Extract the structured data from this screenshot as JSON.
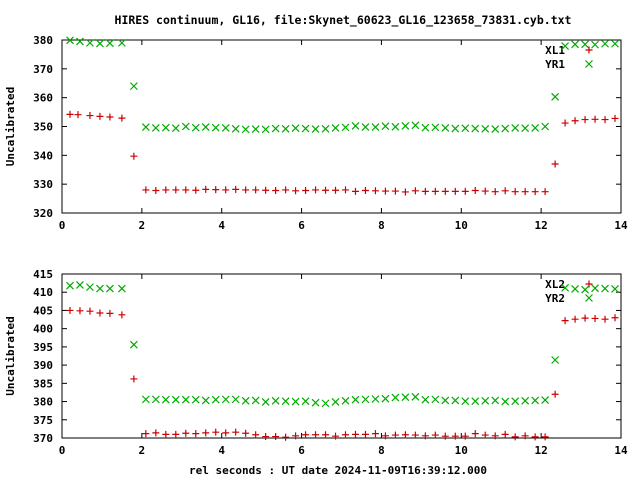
{
  "title": "HIRES continuum, GL16, file:Skynet_60623_GL16_123658_73831.cyb.txt",
  "xlabel": "rel seconds : UT date 2024-11-09T16:39:12.000",
  "colors": {
    "red": "#cc0000",
    "green": "#00aa00",
    "axis": "#000000"
  },
  "chart_data": [
    {
      "type": "scatter",
      "ylabel": "Uncalibrated",
      "xlim": [
        0,
        14
      ],
      "ylim": [
        320,
        380
      ],
      "xticks": [
        "0",
        "2",
        "4",
        "6",
        "8",
        "10",
        "12",
        "14"
      ],
      "yticks": [
        "320",
        "330",
        "340",
        "350",
        "360",
        "370",
        "380"
      ],
      "legend_position": "top-right",
      "series": [
        {
          "name": "XL1",
          "color": "#cc0000",
          "marker": "plus",
          "x": [
            0.2,
            0.4,
            0.7,
            0.95,
            1.2,
            1.5,
            1.8,
            2.1,
            2.35,
            2.6,
            2.85,
            3.1,
            3.35,
            3.6,
            3.85,
            4.1,
            4.35,
            4.6,
            4.85,
            5.1,
            5.35,
            5.6,
            5.85,
            6.1,
            6.35,
            6.6,
            6.85,
            7.1,
            7.35,
            7.6,
            7.85,
            8.1,
            8.35,
            8.6,
            8.85,
            9.1,
            9.35,
            9.6,
            9.85,
            10.1,
            10.35,
            10.6,
            10.85,
            11.1,
            11.35,
            11.6,
            11.85,
            12.1,
            12.35,
            12.6,
            12.85,
            13.1,
            13.35,
            13.6,
            13.85
          ],
          "y": [
            354.2,
            354.1,
            353.8,
            353.5,
            353.3,
            352.9,
            339.7,
            328.0,
            327.8,
            328.0,
            328.0,
            328.0,
            327.9,
            328.2,
            328.1,
            328.0,
            328.2,
            328.0,
            328.0,
            327.9,
            327.8,
            328.0,
            327.7,
            327.8,
            328.0,
            327.9,
            327.9,
            328.0,
            327.5,
            327.8,
            327.7,
            327.6,
            327.6,
            327.3,
            327.7,
            327.5,
            327.5,
            327.5,
            327.5,
            327.5,
            327.8,
            327.6,
            327.4,
            327.7,
            327.4,
            327.4,
            327.4,
            327.4,
            337.0,
            351.2,
            352.0,
            352.4,
            352.5,
            352.4,
            352.8
          ]
        },
        {
          "name": "YR1",
          "color": "#00aa00",
          "marker": "cross",
          "x": [
            0.2,
            0.45,
            0.7,
            0.95,
            1.2,
            1.5,
            1.8,
            2.1,
            2.35,
            2.6,
            2.85,
            3.1,
            3.35,
            3.6,
            3.85,
            4.1,
            4.35,
            4.6,
            4.85,
            5.1,
            5.35,
            5.6,
            5.85,
            6.1,
            6.35,
            6.6,
            6.85,
            7.1,
            7.35,
            7.6,
            7.85,
            8.1,
            8.35,
            8.6,
            8.85,
            9.1,
            9.35,
            9.6,
            9.85,
            10.1,
            10.35,
            10.6,
            10.85,
            11.1,
            11.35,
            11.6,
            11.85,
            12.1,
            12.35,
            12.6,
            12.85,
            13.1,
            13.35,
            13.6,
            13.85
          ],
          "y": [
            379.9,
            379.5,
            379.0,
            378.8,
            378.9,
            379.0,
            364.0,
            349.8,
            349.5,
            349.6,
            349.4,
            350.0,
            349.6,
            349.8,
            349.6,
            349.5,
            349.2,
            349.0,
            349.1,
            349.0,
            349.3,
            349.2,
            349.4,
            349.3,
            349.1,
            349.2,
            349.5,
            349.7,
            350.2,
            349.8,
            349.8,
            350.1,
            349.9,
            350.2,
            350.4,
            349.6,
            349.7,
            349.5,
            349.3,
            349.4,
            349.3,
            349.2,
            349.1,
            349.3,
            349.5,
            349.4,
            349.5,
            350.0,
            360.3,
            377.9,
            378.5,
            378.5,
            378.4,
            378.7,
            378.7
          ]
        }
      ]
    },
    {
      "type": "scatter",
      "ylabel": "Uncalibrated",
      "xlim": [
        0,
        14
      ],
      "ylim": [
        370,
        415
      ],
      "xticks": [
        "0",
        "2",
        "4",
        "6",
        "8",
        "10",
        "12",
        "14"
      ],
      "yticks": [
        "370",
        "375",
        "380",
        "385",
        "390",
        "395",
        "400",
        "405",
        "410",
        "415"
      ],
      "legend_position": "top-right",
      "series": [
        {
          "name": "XL2",
          "color": "#cc0000",
          "marker": "plus",
          "x": [
            0.2,
            0.45,
            0.7,
            0.95,
            1.2,
            1.5,
            1.8,
            2.1,
            2.35,
            2.6,
            2.85,
            3.1,
            3.35,
            3.6,
            3.85,
            4.1,
            4.35,
            4.6,
            4.85,
            5.1,
            5.35,
            5.6,
            5.85,
            6.1,
            6.35,
            6.6,
            6.85,
            7.1,
            7.35,
            7.6,
            7.85,
            8.1,
            8.35,
            8.6,
            8.85,
            9.1,
            9.35,
            9.6,
            9.85,
            10.1,
            10.35,
            10.6,
            10.85,
            11.1,
            11.35,
            11.6,
            11.85,
            12.1,
            12.35,
            12.6,
            12.85,
            13.1,
            13.35,
            13.6,
            13.85
          ],
          "y": [
            405.0,
            404.9,
            404.8,
            404.3,
            404.2,
            403.8,
            386.2,
            371.2,
            371.4,
            371.0,
            371.0,
            371.3,
            371.2,
            371.4,
            371.6,
            371.4,
            371.6,
            371.3,
            370.9,
            370.4,
            370.4,
            370.2,
            370.6,
            370.9,
            370.9,
            370.9,
            370.5,
            370.9,
            371.0,
            371.0,
            371.2,
            370.6,
            370.8,
            370.9,
            370.8,
            370.6,
            370.8,
            370.5,
            370.5,
            370.5,
            371.2,
            370.8,
            370.6,
            371.0,
            370.3,
            370.6,
            370.3,
            370.3,
            382.0,
            402.2,
            402.6,
            402.9,
            402.8,
            402.6,
            403.0
          ]
        },
        {
          "name": "YR2",
          "color": "#00aa00",
          "marker": "cross",
          "x": [
            0.2,
            0.45,
            0.7,
            0.95,
            1.2,
            1.5,
            1.8,
            2.1,
            2.35,
            2.6,
            2.85,
            3.1,
            3.35,
            3.6,
            3.85,
            4.1,
            4.35,
            4.6,
            4.85,
            5.1,
            5.35,
            5.6,
            5.85,
            6.1,
            6.35,
            6.6,
            6.85,
            7.1,
            7.35,
            7.6,
            7.85,
            8.1,
            8.35,
            8.6,
            8.85,
            9.1,
            9.35,
            9.6,
            9.85,
            10.1,
            10.35,
            10.6,
            10.85,
            11.1,
            11.35,
            11.6,
            11.85,
            12.1,
            12.35,
            12.6,
            12.85,
            13.1,
            13.35,
            13.6,
            13.85
          ],
          "y": [
            411.8,
            412.0,
            411.4,
            411.0,
            411.0,
            411.0,
            395.6,
            380.6,
            380.6,
            380.5,
            380.5,
            380.5,
            380.5,
            380.3,
            380.5,
            380.6,
            380.6,
            380.2,
            380.3,
            379.9,
            380.2,
            380.1,
            380.0,
            380.1,
            379.7,
            379.5,
            379.9,
            380.2,
            380.5,
            380.6,
            380.7,
            380.8,
            381.1,
            381.2,
            381.3,
            380.5,
            380.6,
            380.3,
            380.3,
            380.1,
            380.1,
            380.2,
            380.3,
            380.0,
            380.1,
            380.2,
            380.3,
            380.4,
            391.4,
            411.2,
            410.9,
            410.7,
            411.1,
            411.0,
            410.9
          ]
        }
      ]
    }
  ]
}
